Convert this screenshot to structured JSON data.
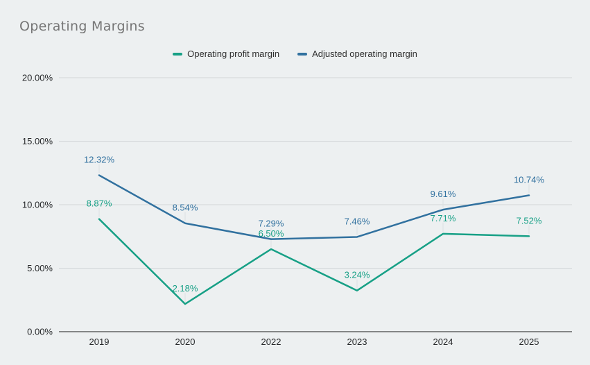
{
  "chart_data": {
    "type": "line",
    "title": "Operating Margins",
    "categories": [
      "2019",
      "2020",
      "2022",
      "2023",
      "2024",
      "2025"
    ],
    "series": [
      {
        "name": "Operating profit margin",
        "color": "#17a086",
        "values": [
          8.87,
          2.18,
          6.5,
          3.24,
          7.71,
          7.52
        ],
        "data_labels": [
          "8.87%",
          "2.18%",
          "6.50%",
          "3.24%",
          "7.71%",
          "7.52%"
        ]
      },
      {
        "name": "Adjusted operating margin",
        "color": "#31719f",
        "values": [
          12.32,
          8.54,
          7.29,
          7.46,
          9.61,
          10.74
        ],
        "data_labels": [
          "12.32%",
          "8.54%",
          "7.29%",
          "7.46%",
          "9.61%",
          "10.74%"
        ]
      }
    ],
    "y_axis": {
      "min": 0,
      "max": 20,
      "ticks": [
        {
          "value": 0,
          "label": "0.00%"
        },
        {
          "value": 5,
          "label": "5.00%"
        },
        {
          "value": 10,
          "label": "10.00%"
        },
        {
          "value": 15,
          "label": "15.00%"
        },
        {
          "value": 20,
          "label": "20.00%"
        }
      ]
    },
    "x_axis": {
      "labels": [
        "2019",
        "2020",
        "2022",
        "2023",
        "2024",
        "2025"
      ]
    },
    "legend_position": "top",
    "grid": true
  },
  "colors": {
    "background": "#edf0f1",
    "title_text": "#757575",
    "axis_text": "#26282a",
    "gridline": "#d2d6d8",
    "axis_line": "#1c1c1c",
    "leader_line": "#dce0e2",
    "legend_text": "#2f2f2f"
  }
}
